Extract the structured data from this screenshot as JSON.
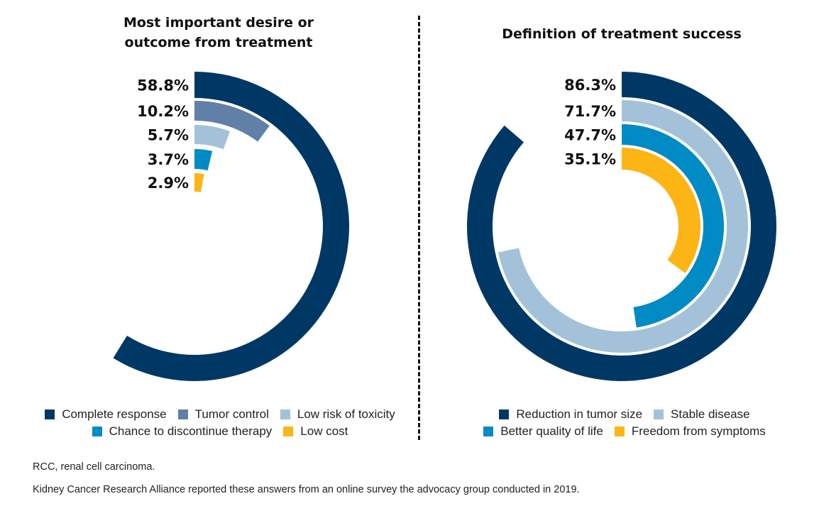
{
  "chart_data": [
    {
      "type": "radial-bar",
      "title": "Most important desire or outcome from treatment",
      "unit": "%",
      "start": "12 o'clock, clockwise",
      "series": [
        {
          "name": "Complete response",
          "value": 58.8,
          "label": "58.8%",
          "color": "#003865"
        },
        {
          "name": "Tumor control",
          "value": 10.2,
          "label": "10.2%",
          "color": "#6180a8"
        },
        {
          "name": "Low risk of toxicity",
          "value": 5.7,
          "label": "5.7%",
          "color": "#a3c2d9"
        },
        {
          "name": "Chance to discontinue therapy",
          "value": 3.7,
          "label": "3.7%",
          "color": "#008bc4"
        },
        {
          "name": "Low cost",
          "value": 2.9,
          "label": "2.9%",
          "color": "#fdb515"
        }
      ],
      "legend": {
        "rows": [
          [
            "Complete response",
            "Tumor control",
            "Low risk of toxicity"
          ],
          [
            "Chance to discontinue therapy",
            "Low cost"
          ]
        ],
        "position": "bottom"
      }
    },
    {
      "type": "radial-bar",
      "title": "Definition of treatment success",
      "unit": "%",
      "start": "12 o'clock, clockwise",
      "series": [
        {
          "name": "Reduction in tumor size",
          "value": 86.3,
          "label": "86.3%",
          "color": "#003865"
        },
        {
          "name": "Stable disease",
          "value": 71.7,
          "label": "71.7%",
          "color": "#a3c2d9"
        },
        {
          "name": "Better quality of life",
          "value": 47.7,
          "label": "47.7%",
          "color": "#008bc4"
        },
        {
          "name": "Freedom from symptoms",
          "value": 35.1,
          "label": "35.1%",
          "color": "#fdb515"
        }
      ],
      "legend": {
        "rows": [
          [
            "Reduction in tumor size",
            "Stable disease"
          ],
          [
            "Better quality of life",
            "Freedom from symptoms"
          ]
        ],
        "position": "bottom"
      }
    }
  ],
  "footnotes": {
    "abbreviation": "RCC, renal cell carcinoma.",
    "source": "Kidney Cancer Research Alliance reported these answers from an online survey the advocacy group conducted in 2019."
  }
}
